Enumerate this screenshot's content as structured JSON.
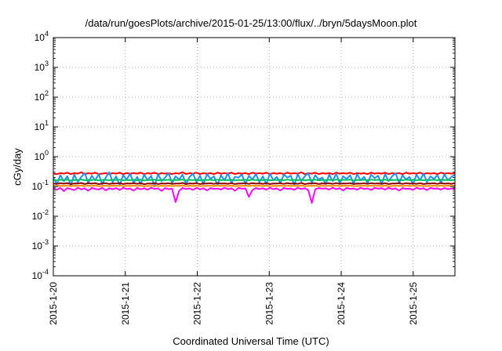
{
  "chart_data": {
    "type": "line",
    "title": "/data/run/goesPlots/archive/2015-01-25/13:00/flux/../bryn/5daysMoon.plot",
    "xlabel": "Coordinated Universal Time (UTC)",
    "ylabel": "cGy/day",
    "x_ticks": [
      "2015-1-20",
      "2015-1-21",
      "2015-1-22",
      "2015-1-23",
      "2015-1-24",
      "2015-1-25"
    ],
    "xlim_days": [
      0,
      5.58
    ],
    "y_scale": "log",
    "ylim": [
      0.0001,
      10000
    ],
    "y_ticks": [
      {
        "base": "10",
        "exp": "-4"
      },
      {
        "base": "10",
        "exp": "-3"
      },
      {
        "base": "10",
        "exp": "-2"
      },
      {
        "base": "10",
        "exp": "-1"
      },
      {
        "base": "10",
        "exp": "0"
      },
      {
        "base": "10",
        "exp": "1"
      },
      {
        "base": "10",
        "exp": "2"
      },
      {
        "base": "10",
        "exp": "3"
      },
      {
        "base": "10",
        "exp": "4"
      }
    ],
    "grid": true,
    "series": [
      {
        "color": "#ff0000",
        "values": [
          0.27,
          0.26,
          0.28,
          0.27,
          0.29,
          0.26,
          0.28,
          0.27,
          0.3,
          0.26,
          0.28,
          0.27,
          0.29,
          0.26,
          0.27,
          0.28,
          0.26,
          0.28,
          0.27,
          0.29,
          0.26,
          0.28,
          0.27,
          0.28,
          0.27,
          0.29,
          0.26,
          0.28,
          0.27,
          0.29,
          0.26,
          0.28,
          0.27,
          0.28,
          0.26,
          0.28,
          0.27,
          0.3,
          0.26,
          0.28,
          0.27,
          0.29,
          0.26,
          0.28,
          0.27,
          0.28,
          0.26,
          0.29,
          0.27,
          0.28,
          0.27,
          0.29,
          0.26,
          0.28,
          0.27,
          0.28,
          0.26,
          0.29,
          0.27,
          0.28,
          0.27,
          0.29,
          0.26,
          0.28,
          0.27,
          0.28,
          0.26,
          0.29,
          0.27,
          0.28,
          0.27,
          0.3,
          0.26,
          0.28,
          0.27,
          0.29,
          0.26,
          0.28,
          0.27,
          0.28,
          0.26,
          0.29,
          0.27,
          0.28,
          0.27,
          0.29,
          0.26,
          0.28,
          0.27,
          0.28,
          0.26,
          0.29,
          0.27,
          0.28,
          0.27,
          0.29,
          0.26,
          0.28,
          0.27,
          0.28,
          0.26,
          0.29,
          0.27,
          0.28,
          0.27,
          0.29,
          0.26,
          0.28,
          0.27,
          0.28,
          0.26,
          0.29,
          0.27,
          0.28,
          0.27,
          0.28
        ]
      },
      {
        "color": "#1e90ff",
        "values": [
          0.2,
          0.12,
          0.24,
          0.15,
          0.22,
          0.11,
          0.25,
          0.14,
          0.21,
          0.28,
          0.13,
          0.23,
          0.16,
          0.26,
          0.12,
          0.2,
          0.3,
          0.14,
          0.22,
          0.11,
          0.24,
          0.17,
          0.27,
          0.13,
          0.21,
          0.12,
          0.25,
          0.16,
          0.23,
          0.1,
          0.26,
          0.15,
          0.2,
          0.28,
          0.13,
          0.22,
          0.17,
          0.25,
          0.12,
          0.21,
          0.27,
          0.14,
          0.23,
          0.12,
          0.26,
          0.18,
          0.22,
          0.11,
          0.24,
          0.16,
          0.28,
          0.13,
          0.21,
          0.2,
          0.25,
          0.12,
          0.23,
          0.17,
          0.26,
          0.14,
          0.22,
          0.12,
          0.27,
          0.16,
          0.21,
          0.13,
          0.25,
          0.2,
          0.23,
          0.11,
          0.26,
          0.15,
          0.22,
          0.28,
          0.13,
          0.24,
          0.17,
          0.2,
          0.12,
          0.25,
          0.15,
          0.27,
          0.13,
          0.22,
          0.18,
          0.24,
          0.12,
          0.26,
          0.16,
          0.21,
          0.13,
          0.25,
          0.19,
          0.23,
          0.12,
          0.26,
          0.15,
          0.22,
          0.28,
          0.13,
          0.24,
          0.17,
          0.21,
          0.12,
          0.25,
          0.16,
          0.27,
          0.14,
          0.22,
          0.18,
          0.24,
          0.13,
          0.26,
          0.16,
          0.21,
          0.25
        ]
      },
      {
        "color": "#00c060",
        "values": [
          0.165,
          0.16,
          0.168,
          0.162,
          0.17,
          0.158,
          0.166,
          0.164,
          0.172,
          0.16,
          0.167,
          0.163,
          0.169,
          0.159,
          0.165,
          0.168,
          0.161,
          0.167,
          0.164,
          0.17,
          0.16,
          0.166,
          0.163,
          0.168,
          0.162,
          0.169,
          0.158,
          0.166,
          0.164,
          0.17,
          0.16,
          0.167,
          0.163,
          0.168,
          0.161,
          0.166,
          0.164,
          0.171,
          0.159,
          0.167,
          0.163,
          0.169,
          0.16,
          0.166,
          0.164,
          0.168,
          0.161,
          0.17,
          0.163,
          0.167,
          0.162,
          0.169,
          0.16,
          0.166,
          0.164,
          0.168,
          0.161,
          0.17,
          0.163,
          0.167,
          0.162,
          0.169,
          0.16,
          0.166,
          0.164,
          0.168,
          0.161,
          0.17,
          0.163,
          0.167,
          0.162,
          0.171,
          0.159,
          0.166,
          0.164,
          0.169,
          0.16,
          0.167,
          0.163,
          0.168,
          0.161,
          0.17,
          0.162,
          0.167,
          0.164,
          0.169,
          0.16,
          0.166,
          0.163,
          0.168,
          0.161,
          0.17,
          0.163,
          0.167,
          0.162,
          0.169,
          0.16,
          0.166,
          0.164,
          0.168,
          0.161,
          0.17,
          0.163,
          0.167,
          0.162,
          0.169,
          0.16,
          0.166,
          0.164,
          0.168,
          0.161,
          0.17,
          0.163,
          0.167,
          0.162,
          0.168
        ]
      },
      {
        "color": "#8b0000",
        "values": [
          0.125,
          0.122,
          0.128,
          0.124,
          0.13,
          0.12,
          0.127,
          0.125,
          0.131,
          0.121,
          0.128,
          0.124,
          0.129,
          0.12,
          0.126,
          0.128,
          0.122,
          0.127,
          0.125,
          0.13,
          0.121,
          0.127,
          0.124,
          0.128,
          0.123,
          0.129,
          0.119,
          0.126,
          0.124,
          0.13,
          0.121,
          0.127,
          0.124,
          0.128,
          0.122,
          0.126,
          0.125,
          0.131,
          0.12,
          0.127,
          0.124,
          0.129,
          0.121,
          0.126,
          0.125,
          0.128,
          0.122,
          0.13,
          0.124,
          0.127,
          0.123,
          0.129,
          0.121,
          0.126,
          0.125,
          0.128,
          0.122,
          0.13,
          0.124,
          0.127,
          0.123,
          0.129,
          0.121,
          0.126,
          0.125,
          0.128,
          0.122,
          0.13,
          0.124,
          0.127,
          0.123,
          0.131,
          0.12,
          0.126,
          0.125,
          0.129,
          0.121,
          0.127,
          0.124,
          0.128,
          0.122,
          0.13,
          0.123,
          0.127,
          0.125,
          0.129,
          0.121,
          0.126,
          0.124,
          0.128,
          0.122,
          0.13,
          0.124,
          0.127,
          0.123,
          0.129,
          0.121,
          0.126,
          0.125,
          0.128,
          0.122,
          0.13,
          0.124,
          0.127,
          0.123,
          0.129,
          0.121,
          0.126,
          0.125,
          0.128,
          0.122,
          0.13,
          0.124,
          0.127,
          0.123,
          0.128
        ]
      },
      {
        "color": "#ff8c00",
        "values": [
          0.105,
          0.103,
          0.107,
          0.104,
          0.108,
          0.102,
          0.106,
          0.105,
          0.109,
          0.102,
          0.107,
          0.104,
          0.108,
          0.101,
          0.105,
          0.107,
          0.103,
          0.106,
          0.105,
          0.108,
          0.102,
          0.106,
          0.104,
          0.107,
          0.103,
          0.108,
          0.101,
          0.105,
          0.104,
          0.108,
          0.102,
          0.106,
          0.104,
          0.107,
          0.103,
          0.105,
          0.105,
          0.109,
          0.102,
          0.106,
          0.104,
          0.108,
          0.102,
          0.105,
          0.105,
          0.107,
          0.103,
          0.108,
          0.104,
          0.106,
          0.103,
          0.108,
          0.102,
          0.105,
          0.105,
          0.107,
          0.103,
          0.108,
          0.104,
          0.106,
          0.103,
          0.108,
          0.102,
          0.105,
          0.105,
          0.107,
          0.103,
          0.108,
          0.104,
          0.106,
          0.103,
          0.109,
          0.102,
          0.105,
          0.105,
          0.108,
          0.102,
          0.106,
          0.104,
          0.107,
          0.103,
          0.108,
          0.103,
          0.106,
          0.105,
          0.108,
          0.102,
          0.105,
          0.104,
          0.107,
          0.103,
          0.108,
          0.104,
          0.106,
          0.103,
          0.108,
          0.102,
          0.105,
          0.105,
          0.107,
          0.103,
          0.108,
          0.104,
          0.106,
          0.103,
          0.108,
          0.102,
          0.105,
          0.105,
          0.107,
          0.103,
          0.108,
          0.104,
          0.106,
          0.103,
          0.107
        ]
      },
      {
        "color": "#ff00ff",
        "values": [
          0.085,
          0.078,
          0.09,
          0.07,
          0.088,
          0.082,
          0.075,
          0.09,
          0.08,
          0.086,
          0.072,
          0.089,
          0.083,
          0.079,
          0.09,
          0.074,
          0.087,
          0.081,
          0.088,
          0.076,
          0.09,
          0.082,
          0.085,
          0.073,
          0.089,
          0.08,
          0.087,
          0.078,
          0.09,
          0.083,
          0.086,
          0.071,
          0.088,
          0.081,
          0.084,
          0.03,
          0.07,
          0.089,
          0.082,
          0.086,
          0.077,
          0.09,
          0.08,
          0.087,
          0.074,
          0.088,
          0.083,
          0.085,
          0.079,
          0.09,
          0.081,
          0.087,
          0.072,
          0.089,
          0.084,
          0.086,
          0.045,
          0.075,
          0.088,
          0.082,
          0.087,
          0.078,
          0.09,
          0.081,
          0.086,
          0.073,
          0.089,
          0.083,
          0.085,
          0.077,
          0.09,
          0.082,
          0.087,
          0.075,
          0.028,
          0.08,
          0.088,
          0.084,
          0.086,
          0.079,
          0.09,
          0.081,
          0.087,
          0.074,
          0.089,
          0.083,
          0.085,
          0.078,
          0.09,
          0.082,
          0.086,
          0.076,
          0.089,
          0.084,
          0.087,
          0.079,
          0.09,
          0.081,
          0.086,
          0.073,
          0.088,
          0.083,
          0.085,
          0.077,
          0.09,
          0.082,
          0.087,
          0.075,
          0.089,
          0.084,
          0.086,
          0.079,
          0.088,
          0.081,
          0.085,
          0.087
        ]
      }
    ]
  }
}
